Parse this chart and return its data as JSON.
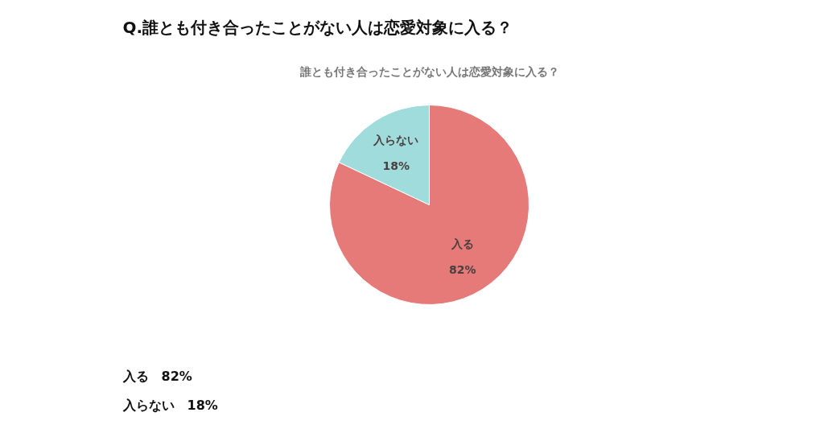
{
  "chart_data": {
    "type": "pie",
    "title": "Q.誰とも付き合ったことがない人は恋愛対象に入る？",
    "subtitle": "誰とも付き合ったことがない人は恋愛対象に入る？",
    "categories": [
      "入る",
      "入らない"
    ],
    "values": [
      82,
      18
    ],
    "colors": [
      "#e57a78",
      "#a0dcdc"
    ],
    "value_labels": [
      "82%",
      "18%"
    ],
    "annotations": [
      "入る　82%",
      "入らない　18%"
    ]
  }
}
